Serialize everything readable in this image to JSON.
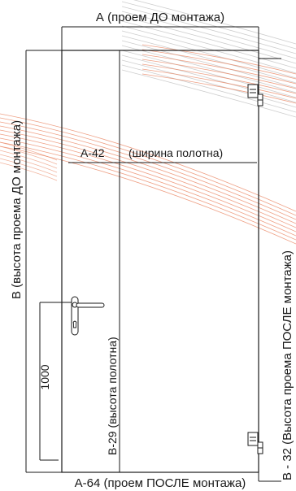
{
  "labels": {
    "top_opening": "А (проем ДО монтажа)",
    "leaf_width": "А-42",
    "leaf_width_note": "(ширина полотна)",
    "left_height": "В (высота проема ДО монтажа)",
    "right_height": "В - 32 (Высота проема ПОСЛЕ монтажа)",
    "leaf_height": "В-29 (высота полотна)",
    "handle_height": "1000",
    "bottom_opening": "А-64 (проем ПОСЛЕ монтажа)"
  },
  "colors": {
    "lines": "#1a1a1a",
    "watermark_red": "#e8805c",
    "watermark_gray": "#b9b9b9"
  },
  "icons": {
    "handle": "door-handle-icon",
    "hinge": "door-hinge-icon"
  }
}
